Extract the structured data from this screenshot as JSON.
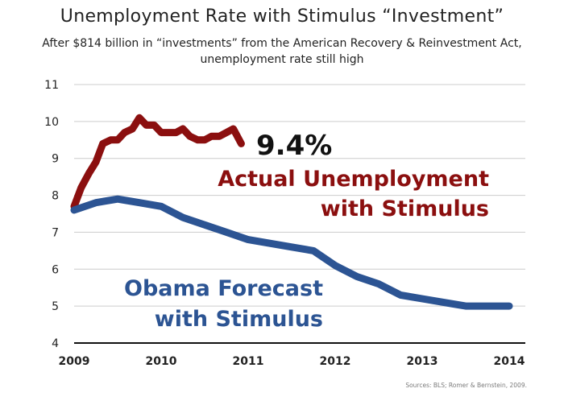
{
  "title": "Unemployment Rate with Stimulus “Investment”",
  "subtitle_line1": "After $814 billion in “investments” from the American Recovery & Reinvestment Act,",
  "subtitle_line2": "unemployment rate still high",
  "source": "Sources: BLS; Romer & Bernstein, 2009.",
  "colors": {
    "actual": "#8b0f0f",
    "forecast": "#2c5493",
    "grid": "#cccccc",
    "axis": "#111111"
  },
  "chart_data": {
    "type": "line",
    "title": "Unemployment Rate with Stimulus “Investment”",
    "xlabel": "",
    "ylabel": "",
    "ylim": [
      4,
      11
    ],
    "xlim": [
      2009,
      2014
    ],
    "grid": true,
    "y_ticks": [
      "4",
      "5",
      "6",
      "7",
      "8",
      "9",
      "10",
      "11"
    ],
    "x_ticks": [
      "2009",
      "2010",
      "2011",
      "2012",
      "2013",
      "2014"
    ],
    "series": [
      {
        "name": "Actual Unemployment with Stimulus",
        "label_lines": [
          "Actual Unemployment",
          "with Stimulus"
        ],
        "end_label": "9.4%",
        "x": [
          2009.0,
          2009.08,
          2009.17,
          2009.25,
          2009.33,
          2009.42,
          2009.5,
          2009.58,
          2009.67,
          2009.75,
          2009.83,
          2009.92,
          2010.0,
          2010.08,
          2010.17,
          2010.25,
          2010.33,
          2010.42,
          2010.5,
          2010.58,
          2010.67,
          2010.75,
          2010.83,
          2010.92
        ],
        "values": [
          7.7,
          8.2,
          8.6,
          8.9,
          9.4,
          9.5,
          9.5,
          9.7,
          9.8,
          10.1,
          9.9,
          9.9,
          9.7,
          9.7,
          9.7,
          9.8,
          9.6,
          9.5,
          9.5,
          9.6,
          9.6,
          9.7,
          9.8,
          9.4
        ]
      },
      {
        "name": "Obama Forecast with Stimulus",
        "label_lines": [
          "Obama Forecast",
          "with Stimulus"
        ],
        "x": [
          2009.0,
          2009.25,
          2009.5,
          2009.75,
          2010.0,
          2010.25,
          2010.5,
          2010.75,
          2011.0,
          2011.25,
          2011.5,
          2011.75,
          2012.0,
          2012.25,
          2012.5,
          2012.75,
          2013.0,
          2013.25,
          2013.5,
          2013.75,
          2014.0
        ],
        "values": [
          7.6,
          7.8,
          7.9,
          7.8,
          7.7,
          7.4,
          7.2,
          7.0,
          6.8,
          6.7,
          6.6,
          6.5,
          6.1,
          5.8,
          5.6,
          5.3,
          5.2,
          5.1,
          5.0,
          5.0,
          5.0
        ]
      }
    ]
  }
}
